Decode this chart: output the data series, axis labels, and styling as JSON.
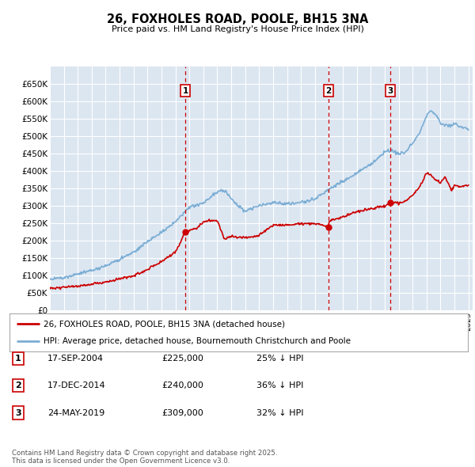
{
  "title": "26, FOXHOLES ROAD, POOLE, BH15 3NA",
  "subtitle": "Price paid vs. HM Land Registry's House Price Index (HPI)",
  "plot_bg_color": "#dce6f1",
  "hpi_color": "#7aadd4",
  "price_color": "#cc0000",
  "grid_color": "#ffffff",
  "purchase_years": [
    2004.71,
    2014.96,
    2019.4
  ],
  "purchase_prices": [
    225000,
    240000,
    309000
  ],
  "purchase_labels": [
    "1",
    "2",
    "3"
  ],
  "legend_entries": [
    "26, FOXHOLES ROAD, POOLE, BH15 3NA (detached house)",
    "HPI: Average price, detached house, Bournemouth Christchurch and Poole"
  ],
  "table_entries": [
    {
      "num": "1",
      "date": "17-SEP-2004",
      "price": "£225,000",
      "pct": "25% ↓ HPI"
    },
    {
      "num": "2",
      "date": "17-DEC-2014",
      "price": "£240,000",
      "pct": "36% ↓ HPI"
    },
    {
      "num": "3",
      "date": "24-MAY-2019",
      "price": "£309,000",
      "pct": "32% ↓ HPI"
    }
  ],
  "footnote": "Contains HM Land Registry data © Crown copyright and database right 2025.\nThis data is licensed under the Open Government Licence v3.0.",
  "ylim": [
    0,
    700000
  ],
  "yticks": [
    0,
    50000,
    100000,
    150000,
    200000,
    250000,
    300000,
    350000,
    400000,
    450000,
    500000,
    550000,
    600000,
    650000
  ],
  "year_start": 1995,
  "year_end": 2025
}
